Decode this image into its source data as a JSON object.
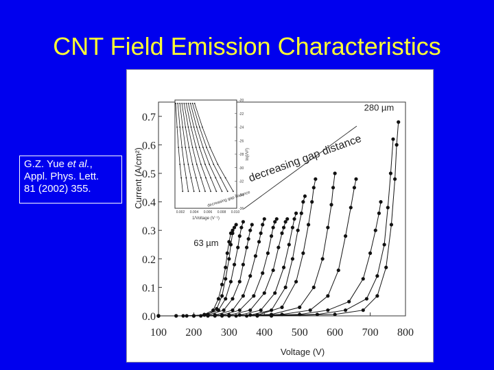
{
  "slide": {
    "title": "CNT Field Emission Characteristics",
    "citation": {
      "line1_prefix": "G.Z. Yue ",
      "line1_italic": "et al.",
      "line1_suffix": ",",
      "line2": "Appl. Phys. Lett.",
      "line3": "81 (2002) 355."
    },
    "colors": {
      "background": "#0000ee",
      "title": "#ffff33",
      "text": "#ffffff"
    }
  },
  "chart_data": [
    {
      "type": "scatter",
      "xlabel": "Voltage (V)",
      "ylabel": "Current (A/cm²)",
      "xlim": [
        100,
        800
      ],
      "ylim": [
        0,
        0.75
      ],
      "xticks": [
        100,
        200,
        300,
        400,
        500,
        600,
        700,
        800
      ],
      "yticks": [
        0.0,
        0.1,
        0.2,
        0.3,
        0.4,
        0.5,
        0.6,
        0.7
      ],
      "grid": false,
      "annotations": [
        {
          "text": "280 µm",
          "x": 725,
          "y": 0.72
        },
        {
          "text": "63 µm",
          "x": 235,
          "y": 0.245
        },
        {
          "text": "decreasing gap distance",
          "x": 360,
          "y": 0.47
        }
      ],
      "series": [
        {
          "x": [
            100,
            150,
            200,
            230,
            255,
            270,
            280,
            290,
            295,
            300,
            305,
            310
          ],
          "y": [
            0,
            0,
            0,
            0.005,
            0.02,
            0.06,
            0.11,
            0.17,
            0.22,
            0.26,
            0.29,
            0.3
          ]
        },
        {
          "x": [
            100,
            150,
            200,
            240,
            265,
            280,
            290,
            300,
            305,
            310,
            315,
            320
          ],
          "y": [
            0,
            0,
            0,
            0.005,
            0.025,
            0.07,
            0.13,
            0.2,
            0.25,
            0.29,
            0.31,
            0.32
          ]
        },
        {
          "x": [
            100,
            170,
            230,
            270,
            290,
            305,
            315,
            325,
            330,
            335,
            340
          ],
          "y": [
            0,
            0,
            0.003,
            0.02,
            0.06,
            0.12,
            0.18,
            0.24,
            0.28,
            0.31,
            0.33
          ]
        },
        {
          "x": [
            100,
            180,
            240,
            285,
            310,
            330,
            340,
            350,
            355,
            360,
            365
          ],
          "y": [
            0,
            0,
            0.003,
            0.02,
            0.06,
            0.12,
            0.18,
            0.24,
            0.27,
            0.3,
            0.32
          ]
        },
        {
          "x": [
            100,
            200,
            260,
            310,
            340,
            360,
            375,
            385,
            390,
            395,
            400
          ],
          "y": [
            0,
            0,
            0.003,
            0.02,
            0.07,
            0.14,
            0.21,
            0.26,
            0.29,
            0.32,
            0.34
          ]
        },
        {
          "x": [
            100,
            200,
            280,
            330,
            370,
            395,
            410,
            420,
            425,
            430,
            435
          ],
          "y": [
            0,
            0,
            0.003,
            0.02,
            0.07,
            0.15,
            0.22,
            0.28,
            0.31,
            0.33,
            0.34
          ]
        },
        {
          "x": [
            100,
            220,
            300,
            360,
            400,
            425,
            440,
            450,
            455,
            460,
            465
          ],
          "y": [
            0,
            0,
            0.003,
            0.02,
            0.08,
            0.16,
            0.24,
            0.29,
            0.31,
            0.33,
            0.34
          ]
        },
        {
          "x": [
            100,
            240,
            330,
            390,
            430,
            455,
            470,
            480,
            485,
            490
          ],
          "y": [
            0,
            0,
            0.003,
            0.02,
            0.08,
            0.17,
            0.25,
            0.31,
            0.34,
            0.36
          ]
        },
        {
          "x": [
            100,
            260,
            360,
            420,
            460,
            480,
            495,
            505,
            510,
            515
          ],
          "y": [
            0,
            0,
            0.003,
            0.02,
            0.1,
            0.2,
            0.3,
            0.36,
            0.4,
            0.42
          ]
        },
        {
          "x": [
            100,
            280,
            380,
            450,
            490,
            510,
            525,
            535,
            540,
            545
          ],
          "y": [
            0,
            0,
            0.003,
            0.03,
            0.12,
            0.22,
            0.32,
            0.4,
            0.45,
            0.48
          ]
        },
        {
          "x": [
            100,
            300,
            420,
            500,
            540,
            565,
            580,
            590,
            595,
            600
          ],
          "y": [
            0,
            0,
            0.005,
            0.03,
            0.1,
            0.2,
            0.31,
            0.39,
            0.45,
            0.5
          ]
        },
        {
          "x": [
            100,
            320,
            450,
            530,
            580,
            610,
            630,
            645,
            655,
            660
          ],
          "y": [
            0,
            0,
            0.005,
            0.02,
            0.07,
            0.16,
            0.28,
            0.38,
            0.45,
            0.48
          ]
        },
        {
          "x": [
            100,
            350,
            500,
            580,
            640,
            680,
            700,
            715,
            725,
            730
          ],
          "y": [
            0,
            0,
            0.005,
            0.02,
            0.05,
            0.13,
            0.22,
            0.3,
            0.36,
            0.4
          ]
        },
        {
          "x": [
            100,
            380,
            550,
            630,
            690,
            720,
            740,
            750,
            758,
            765
          ],
          "y": [
            0,
            0,
            0.005,
            0.02,
            0.06,
            0.14,
            0.25,
            0.38,
            0.5,
            0.62
          ]
        },
        {
          "x": [
            100,
            420,
            600,
            680,
            720,
            745,
            760,
            770,
            775,
            780
          ],
          "y": [
            0,
            0,
            0.005,
            0.02,
            0.07,
            0.17,
            0.32,
            0.48,
            0.6,
            0.68
          ]
        }
      ]
    },
    {
      "type": "line",
      "inset": true,
      "xlabel": "1/Voltage (V⁻¹)",
      "ylabel": "ln(I/V²)",
      "xticks": [
        "0.002",
        "0.004",
        "0.006",
        "0.008",
        "0.010"
      ],
      "yticks": [
        "-20",
        "-22",
        "-24",
        "-26",
        "-28",
        "-30",
        "-32",
        "-34",
        "-36"
      ],
      "annotation": "decreasing gap distance",
      "series": [
        {
          "x": [
            0.0013,
            0.0015,
            0.0017,
            0.0019,
            0.0021,
            0.0023
          ],
          "y": [
            -20.5,
            -24,
            -27,
            -29.5,
            -31.5,
            -33.5
          ]
        },
        {
          "x": [
            0.0016,
            0.0019,
            0.0022,
            0.0025,
            0.0028,
            0.0031
          ],
          "y": [
            -20.5,
            -24,
            -27,
            -29.5,
            -31.5,
            -33.5
          ]
        },
        {
          "x": [
            0.0019,
            0.0023,
            0.0027,
            0.0031,
            0.0035,
            0.0039
          ],
          "y": [
            -20.5,
            -24,
            -27,
            -29.5,
            -31.5,
            -33.5
          ]
        },
        {
          "x": [
            0.0022,
            0.0027,
            0.0032,
            0.0037,
            0.0042,
            0.0047
          ],
          "y": [
            -20.5,
            -24,
            -27,
            -29.5,
            -31.5,
            -33.5
          ]
        },
        {
          "x": [
            0.0025,
            0.0031,
            0.0037,
            0.0043,
            0.0049,
            0.0055
          ],
          "y": [
            -20.5,
            -24,
            -27,
            -29.5,
            -31.5,
            -33.5
          ]
        },
        {
          "x": [
            0.0028,
            0.0035,
            0.0042,
            0.0049,
            0.0056,
            0.0063
          ],
          "y": [
            -20.5,
            -24,
            -27,
            -29.5,
            -31.5,
            -33.5
          ]
        },
        {
          "x": [
            0.0031,
            0.0039,
            0.0047,
            0.0055,
            0.0063,
            0.0071
          ],
          "y": [
            -20.5,
            -24,
            -27,
            -29.5,
            -31.5,
            -33.5
          ]
        },
        {
          "x": [
            0.0034,
            0.0043,
            0.0052,
            0.0061,
            0.007,
            0.0079
          ],
          "y": [
            -20.5,
            -24,
            -27,
            -29.5,
            -31.5,
            -33.5
          ]
        },
        {
          "x": [
            0.0037,
            0.0047,
            0.0057,
            0.0067,
            0.0077,
            0.0087
          ],
          "y": [
            -20.5,
            -24,
            -27,
            -29.5,
            -31.5,
            -33.5
          ]
        },
        {
          "x": [
            0.004,
            0.0051,
            0.0062,
            0.0073,
            0.0084,
            0.0095
          ],
          "y": [
            -20.5,
            -24,
            -27,
            -29.5,
            -31.5,
            -33.5
          ]
        }
      ]
    }
  ]
}
